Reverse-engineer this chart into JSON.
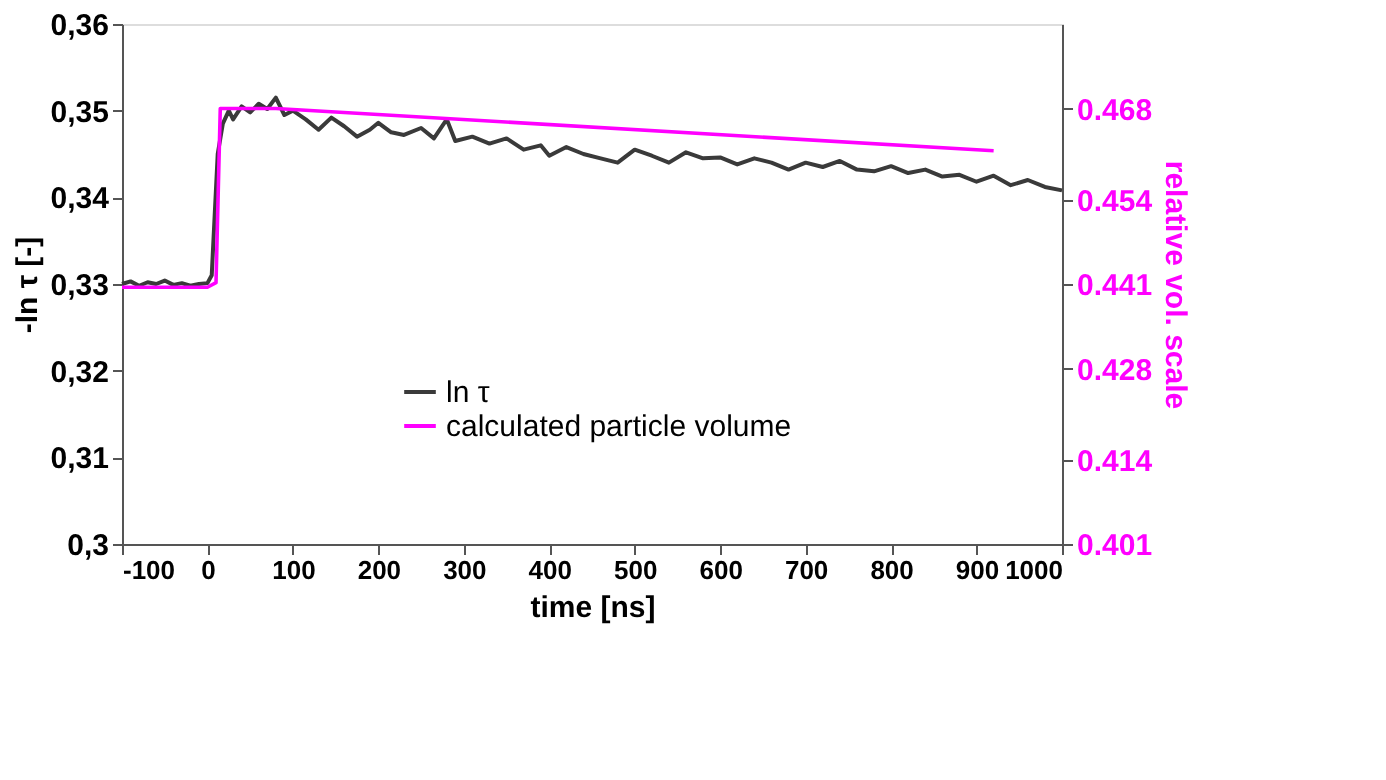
{
  "chart_data": {
    "type": "line",
    "xlabel": "time [ns]",
    "ylabel": "-ln τ [-]",
    "y2label": "relative vol. scale",
    "xlim": [
      -100,
      1000
    ],
    "xticks": [
      -100,
      0,
      100,
      200,
      300,
      400,
      500,
      600,
      700,
      800,
      900,
      1000
    ],
    "ylim": [
      0.3,
      0.36
    ],
    "yticks": [
      {
        "value": 0.3,
        "label": "0,3"
      },
      {
        "value": 0.31,
        "label": "0,31"
      },
      {
        "value": 0.32,
        "label": "0,32"
      },
      {
        "value": 0.33,
        "label": "0,33"
      },
      {
        "value": 0.34,
        "label": "0,34"
      },
      {
        "value": 0.35,
        "label": "0,35"
      },
      {
        "value": 0.36,
        "label": "0,36"
      }
    ],
    "y2lim": [
      0.401,
      0.481
    ],
    "y2ticks": [
      0.401,
      0.414,
      0.428,
      0.441,
      0.454,
      0.468
    ],
    "grid": false,
    "legend": "bottom",
    "marker": "none",
    "line_style": "solid",
    "series": [
      {
        "name": "ln τ",
        "color": "#3a3a3a",
        "x": [
          -100,
          -90,
          -80,
          -70,
          -60,
          -50,
          -40,
          -30,
          -20,
          -10,
          0,
          5,
          12,
          18,
          25,
          30,
          40,
          50,
          60,
          70,
          80,
          90,
          100,
          115,
          130,
          145,
          160,
          175,
          190,
          200,
          215,
          230,
          250,
          265,
          280,
          290,
          310,
          330,
          350,
          370,
          390,
          400,
          420,
          440,
          460,
          480,
          500,
          520,
          540,
          560,
          580,
          600,
          620,
          640,
          660,
          680,
          700,
          720,
          740,
          760,
          780,
          800,
          820,
          840,
          860,
          880,
          900,
          920,
          940,
          960,
          980,
          1000
        ],
        "values": [
          0.33,
          0.3303,
          0.3298,
          0.3302,
          0.33,
          0.3304,
          0.3299,
          0.3301,
          0.3298,
          0.33,
          0.3301,
          0.331,
          0.345,
          0.3485,
          0.35,
          0.349,
          0.3505,
          0.3498,
          0.3508,
          0.3502,
          0.3515,
          0.3495,
          0.35,
          0.349,
          0.3478,
          0.3492,
          0.3482,
          0.347,
          0.3478,
          0.3486,
          0.3475,
          0.3472,
          0.348,
          0.3468,
          0.349,
          0.3465,
          0.347,
          0.3462,
          0.3468,
          0.3455,
          0.346,
          0.3448,
          0.3458,
          0.345,
          0.3445,
          0.344,
          0.3455,
          0.3448,
          0.344,
          0.3452,
          0.3445,
          0.3446,
          0.3438,
          0.3445,
          0.344,
          0.3432,
          0.344,
          0.3435,
          0.3442,
          0.3432,
          0.343,
          0.3436,
          0.3428,
          0.3432,
          0.3424,
          0.3426,
          0.3418,
          0.3425,
          0.3414,
          0.342,
          0.3412,
          0.3408
        ]
      },
      {
        "name": "calculated particle volume",
        "color": "#ff00ff",
        "axis": "y2",
        "x": [
          -100,
          0,
          10,
          15,
          80,
          920
        ],
        "values": [
          0.4405,
          0.4405,
          0.4412,
          0.468,
          0.468,
          0.4615
        ]
      }
    ]
  }
}
